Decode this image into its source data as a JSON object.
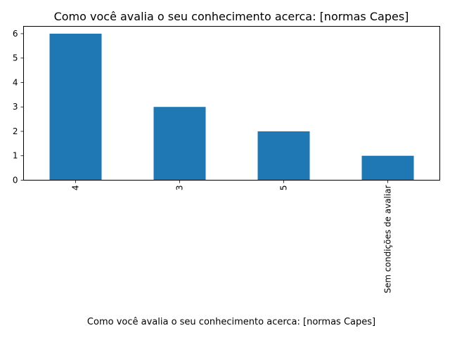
{
  "chart_data": {
    "type": "bar",
    "title": "Como você avalia o seu conhecimento acerca: [normas Capes]",
    "xlabel": "Como você avalia o seu conhecimento acerca: [normas Capes]",
    "ylabel": "",
    "categories": [
      "4",
      "3",
      "5",
      "Sem condições de avaliar"
    ],
    "values": [
      6,
      3,
      2,
      1
    ],
    "ylim": [
      0,
      6.3
    ],
    "yticks": [
      0,
      1,
      2,
      3,
      4,
      5,
      6
    ],
    "bar_color": "#1f77b4",
    "grid": false,
    "legend": "none",
    "xtick_rotation": "vertical"
  }
}
